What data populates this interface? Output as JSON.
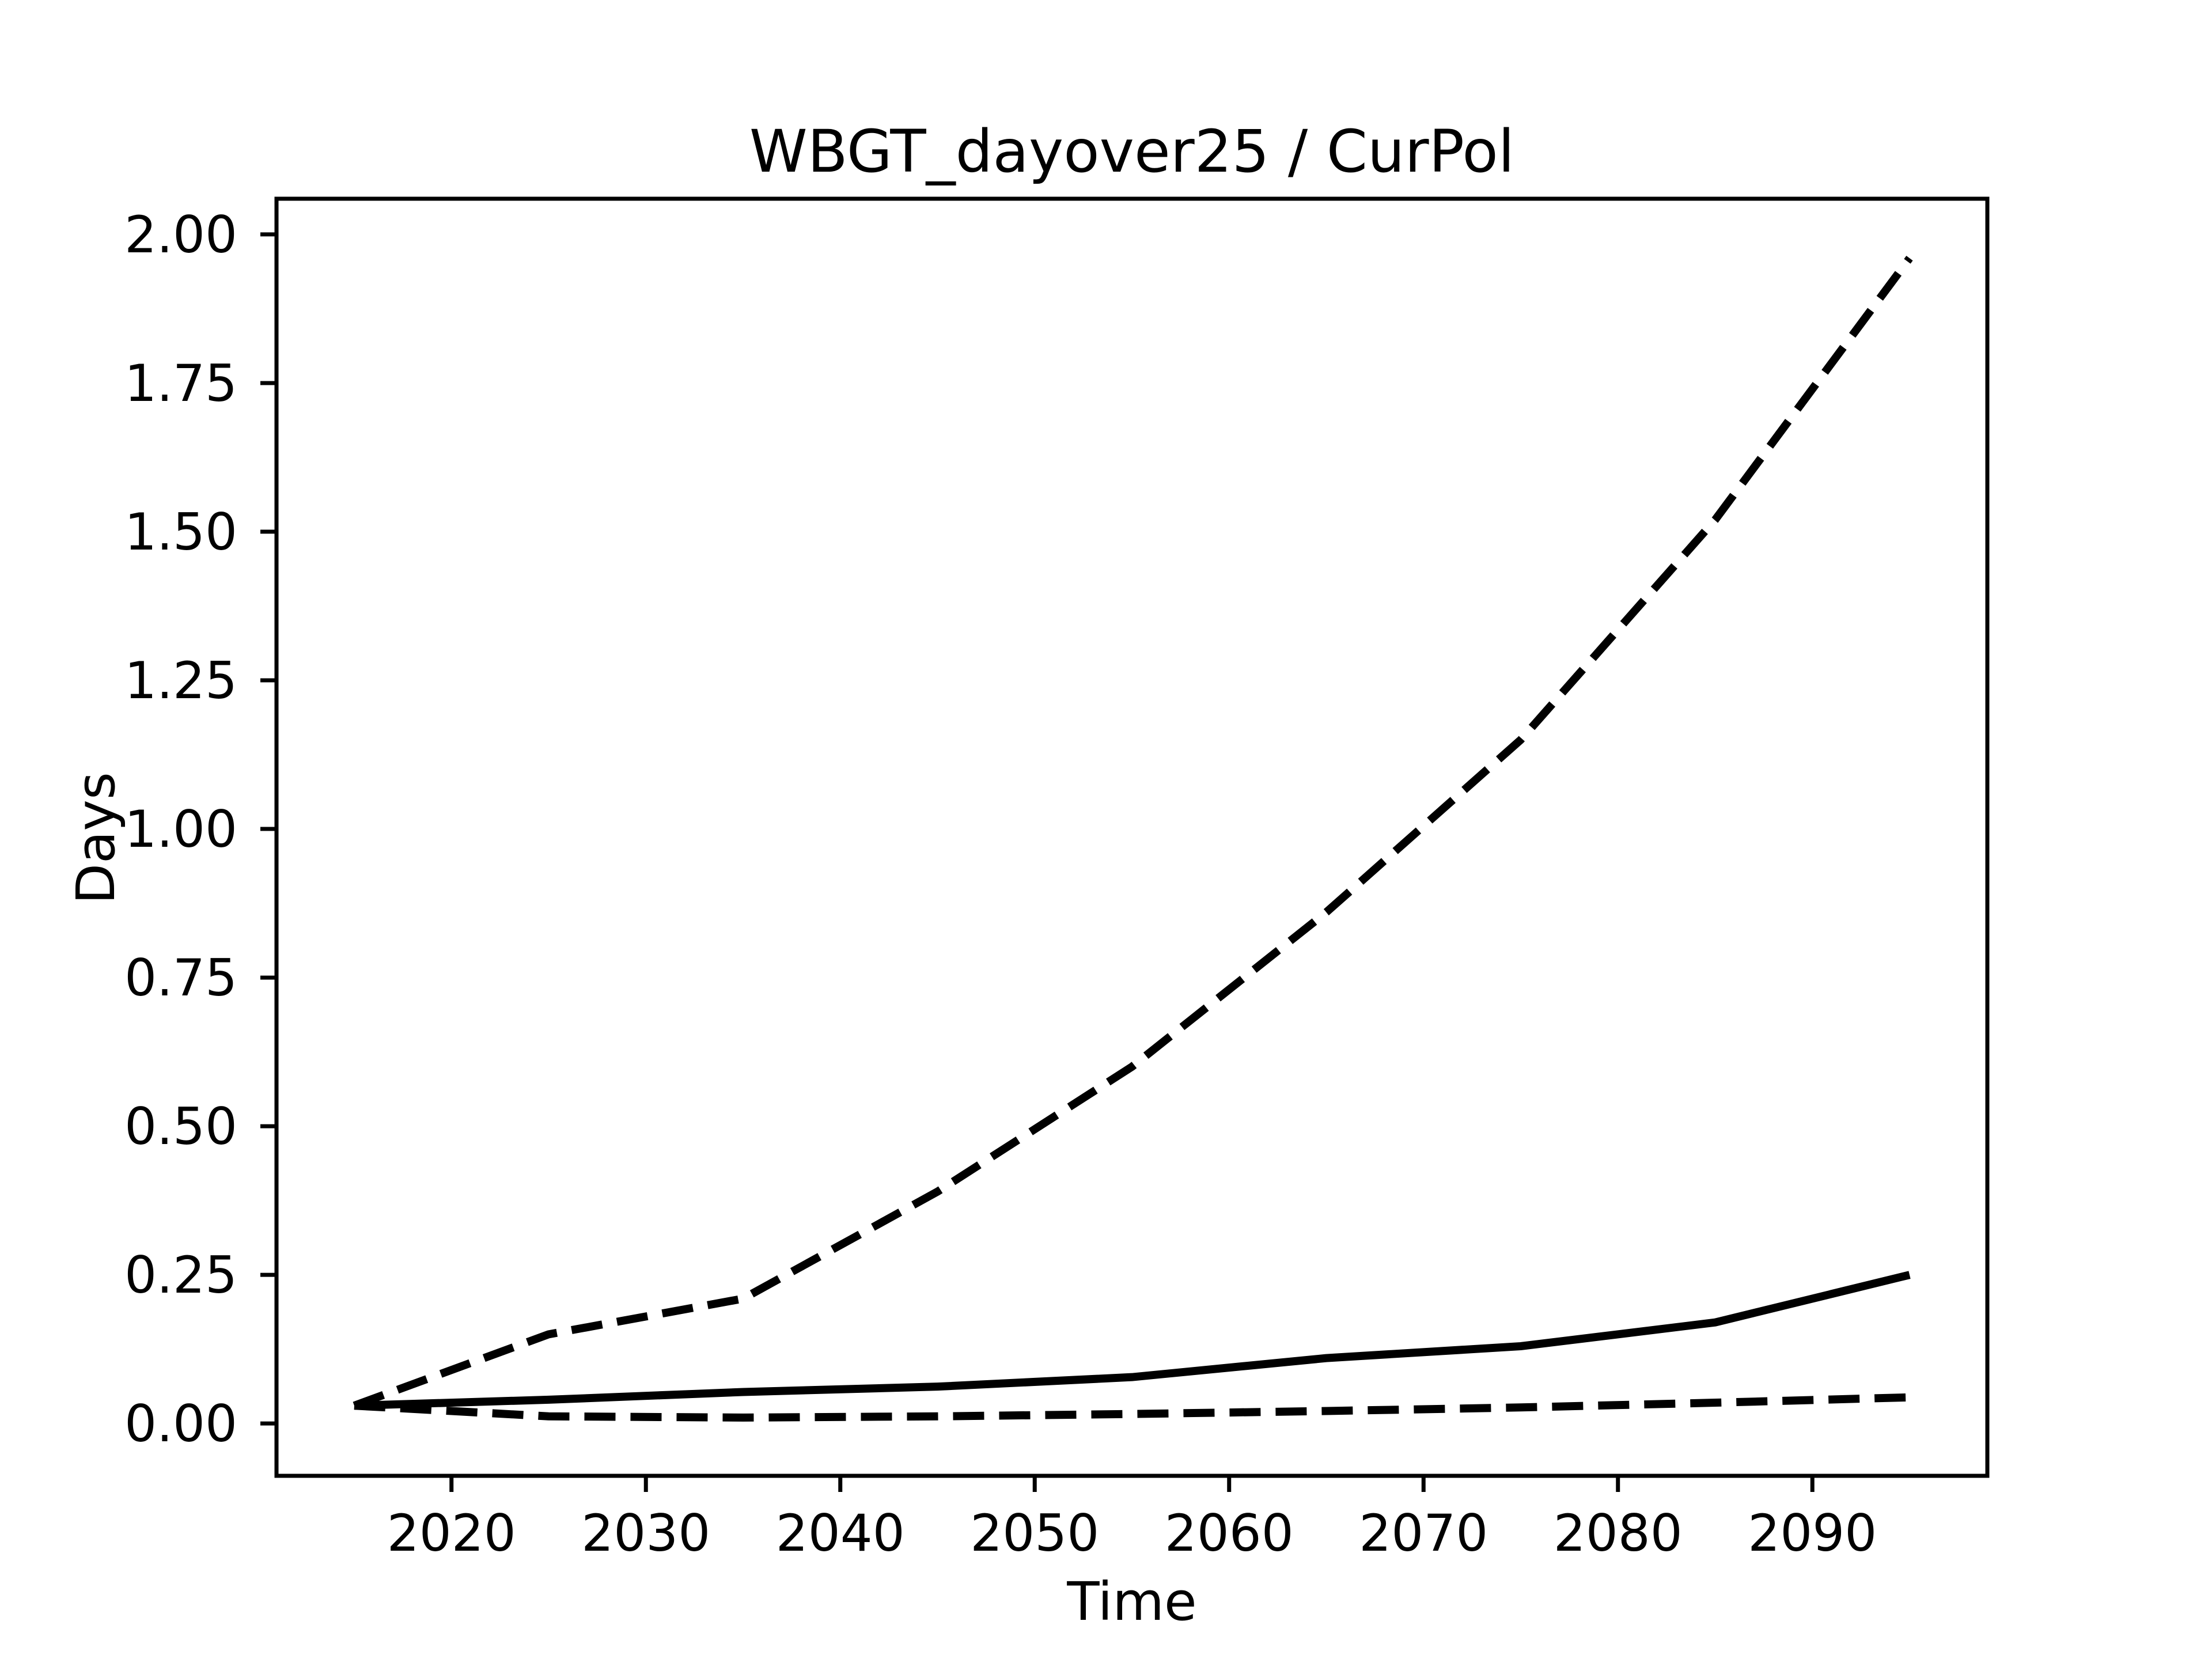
{
  "chart_data": {
    "type": "line",
    "title": "WBGT_dayover25 / CurPol",
    "xlabel": "Time",
    "ylabel": "Days",
    "x": [
      2015,
      2025,
      2035,
      2045,
      2055,
      2065,
      2075,
      2085,
      2095
    ],
    "series": [
      {
        "name": "upper-dashed",
        "style": "dashed",
        "values": [
          0.03,
          0.15,
          0.21,
          0.39,
          0.6,
          0.86,
          1.15,
          1.52,
          1.96
        ]
      },
      {
        "name": "solid-middle",
        "style": "solid",
        "values": [
          0.03,
          0.04,
          0.053,
          0.062,
          0.078,
          0.11,
          0.13,
          0.17,
          0.25
        ]
      },
      {
        "name": "lower-dashed",
        "style": "dashed",
        "values": [
          0.03,
          0.012,
          0.01,
          0.012,
          0.016,
          0.021,
          0.027,
          0.035,
          0.044
        ]
      }
    ],
    "x_ticks": [
      2020,
      2030,
      2040,
      2050,
      2060,
      2070,
      2080,
      2090
    ],
    "y_ticks": [
      0.0,
      0.25,
      0.5,
      0.75,
      1.0,
      1.25,
      1.5,
      1.75,
      2.0
    ],
    "y_tick_labels": [
      "0.00",
      "0.25",
      "0.50",
      "0.75",
      "1.00",
      "1.25",
      "1.50",
      "1.75",
      "2.00"
    ],
    "xlim": [
      2011,
      2099
    ],
    "ylim": [
      -0.088,
      2.06
    ],
    "grid": false,
    "legend_position": "none",
    "line_color": "#000000",
    "text_color": "#000000",
    "background_color": "#ffffff"
  }
}
